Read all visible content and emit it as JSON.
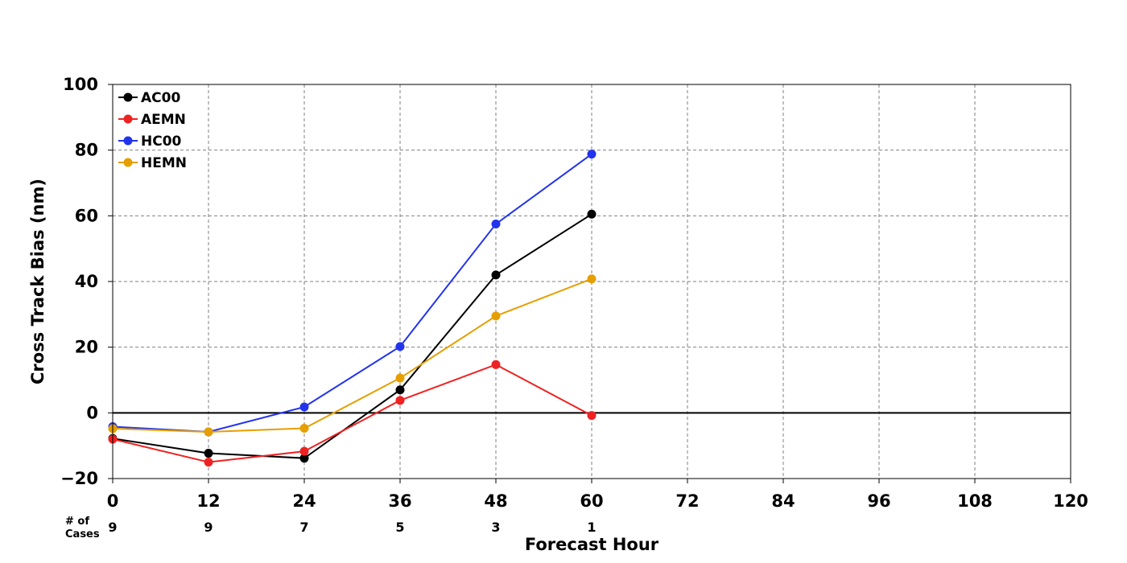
{
  "chart_data": {
    "type": "line",
    "title": "",
    "xlabel": "Forecast Hour",
    "ylabel": "Cross Track Bias (nm)",
    "xlim": [
      0,
      120
    ],
    "ylim": [
      -20,
      100
    ],
    "x_ticks": [
      0,
      12,
      24,
      36,
      48,
      60,
      72,
      84,
      96,
      108,
      120
    ],
    "y_ticks": [
      -20,
      0,
      20,
      40,
      60,
      80,
      100
    ],
    "y_tick_labels": [
      "−20",
      "0",
      "20",
      "40",
      "60",
      "80",
      "100"
    ],
    "grid": true,
    "grid_style": "dashed",
    "zero_line": true,
    "legend_position": "top-left",
    "x": [
      0,
      12,
      24,
      36,
      48,
      60
    ],
    "series": [
      {
        "name": "AC00",
        "color": "#000000",
        "values": [
          -7.8,
          -12.3,
          -13.8,
          7.0,
          42.0,
          60.5
        ]
      },
      {
        "name": "AEMN",
        "color": "#ee2222",
        "values": [
          -8.0,
          -15.0,
          -11.7,
          3.8,
          14.7,
          -0.8
        ]
      },
      {
        "name": "HC00",
        "color": "#2233ee",
        "values": [
          -4.2,
          -5.8,
          1.8,
          20.2,
          57.5,
          78.8
        ]
      },
      {
        "name": "HEMN",
        "color": "#e69f00",
        "values": [
          -4.8,
          -5.8,
          -4.7,
          10.6,
          29.5,
          40.8
        ]
      }
    ],
    "cases": {
      "label_line1": "# of",
      "label_line2": "Cases",
      "x": [
        0,
        12,
        24,
        36,
        48,
        60
      ],
      "values": [
        "9",
        "9",
        "7",
        "5",
        "3",
        "1"
      ]
    }
  }
}
